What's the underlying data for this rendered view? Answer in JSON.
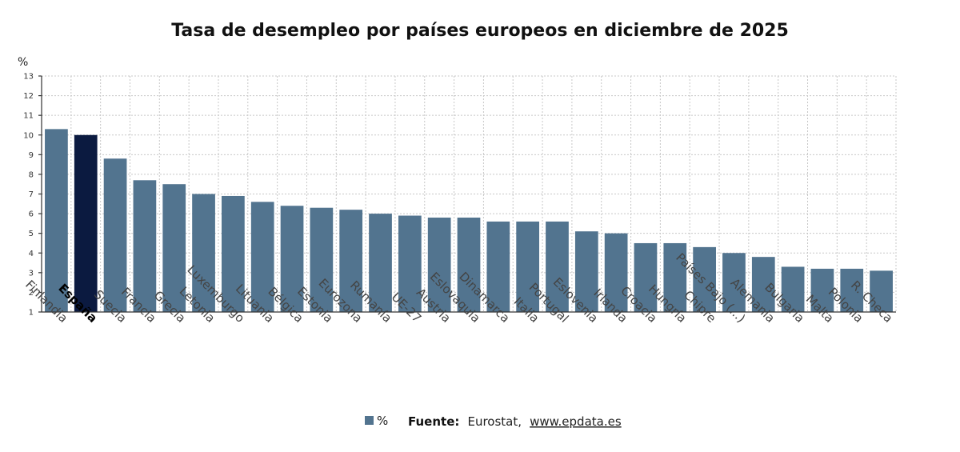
{
  "chart_data": {
    "type": "bar",
    "title": "Tasa de desempleo por países europeos en diciembre de 2025",
    "y_unit": "%",
    "ylim": [
      1,
      13
    ],
    "y_ticks": [
      "1",
      "2",
      "3",
      "4",
      "5",
      "6",
      "7",
      "8",
      "9",
      "10",
      "11",
      "12",
      "13"
    ],
    "grid": true,
    "categories": [
      "Finlandia",
      "España",
      "Suecia",
      "Francia",
      "Grecia",
      "Letonia",
      "Luxemburgo",
      "Lituania",
      "Bélgica",
      "Estonia",
      "Eurozona",
      "Rumanía",
      "UE-27",
      "Austria",
      "Eslovaquia",
      "Dinamarca",
      "Italia",
      "Portugal",
      "Eslovenia",
      "Irlanda",
      "Croacia",
      "Hungría",
      "Chipre",
      "Países Bajo (...)",
      "Alemania",
      "Bulgaria",
      "Malta",
      "Polonia",
      "R. Checa"
    ],
    "highlight_category": "España",
    "series": [
      {
        "name": "%",
        "values": [
          10.3,
          10.0,
          8.8,
          7.7,
          7.5,
          7.0,
          6.9,
          6.6,
          6.4,
          6.3,
          6.2,
          6.0,
          5.9,
          5.8,
          5.8,
          5.6,
          5.6,
          5.6,
          5.1,
          5.0,
          4.5,
          4.5,
          4.3,
          4.0,
          3.8,
          3.3,
          3.2,
          3.2,
          3.1
        ]
      }
    ],
    "legend_position": "bottom-center"
  },
  "colors": {
    "bar": "#52748f",
    "bar_highlight": "#0b1a40",
    "legend_swatch": "#52748f"
  },
  "legend": {
    "label": "%"
  },
  "source": {
    "label": "Fuente:",
    "text": "Eurostat,",
    "link": "www.epdata.es"
  }
}
